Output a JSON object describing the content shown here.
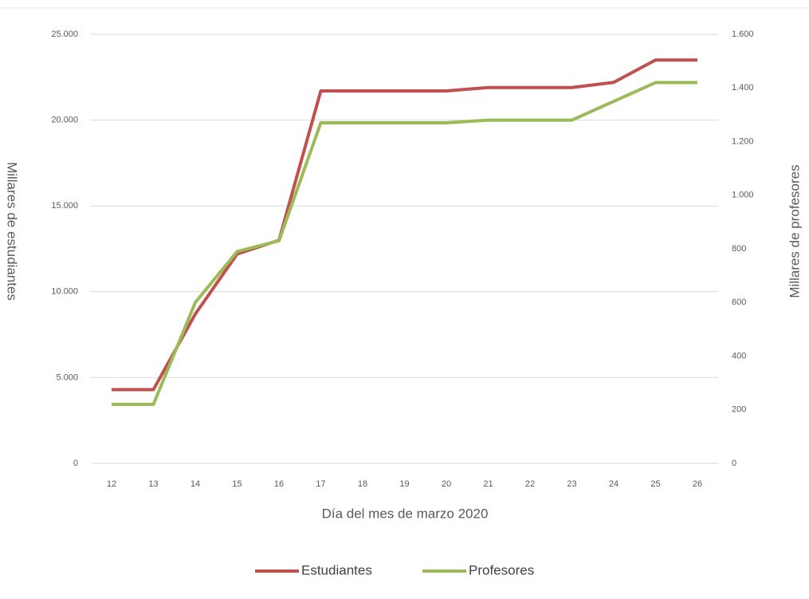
{
  "chart_data": {
    "type": "line",
    "categories": [
      "12",
      "13",
      "14",
      "15",
      "16",
      "17",
      "18",
      "19",
      "20",
      "21",
      "22",
      "23",
      "24",
      "25",
      "26"
    ],
    "series": [
      {
        "name": "Estudiantes",
        "color": "#c0504d",
        "values": [
          4300,
          4300,
          8700,
          12200,
          13000,
          21700,
          21700,
          21700,
          21700,
          21900,
          21900,
          21900,
          22200,
          23500,
          23500
        ]
      },
      {
        "name": "Profesores",
        "color": "#9bbb59",
        "axis": "y2",
        "values": [
          220,
          220,
          600,
          790,
          830,
          1270,
          1270,
          1270,
          1270,
          1280,
          1280,
          1280,
          1350,
          1420,
          1420
        ]
      }
    ],
    "ylim": [
      0,
      25000
    ],
    "yticks": [
      0,
      {
        "value": 5000,
        "label": "5.000"
      },
      {
        "value": 10000,
        "label": "10.000"
      },
      {
        "value": 15000,
        "label": "15.000"
      },
      {
        "value": 20000,
        "label": "20.000"
      },
      {
        "value": 25000,
        "label": "25.000"
      }
    ],
    "y2lim": [
      0,
      1600
    ],
    "y2ticks": [
      0,
      200,
      400,
      600,
      800,
      {
        "value": 1000,
        "label": "1.000"
      },
      {
        "value": 1200,
        "label": "1.200"
      },
      {
        "value": 1400,
        "label": "1.400"
      },
      {
        "value": 1600,
        "label": "1.600"
      }
    ],
    "xlabel": "Día del mes de marzo 2020",
    "ylabel": "Millares de estudiantes",
    "y2label": "Millares de profesores",
    "grid": true,
    "legend": "bottom"
  }
}
